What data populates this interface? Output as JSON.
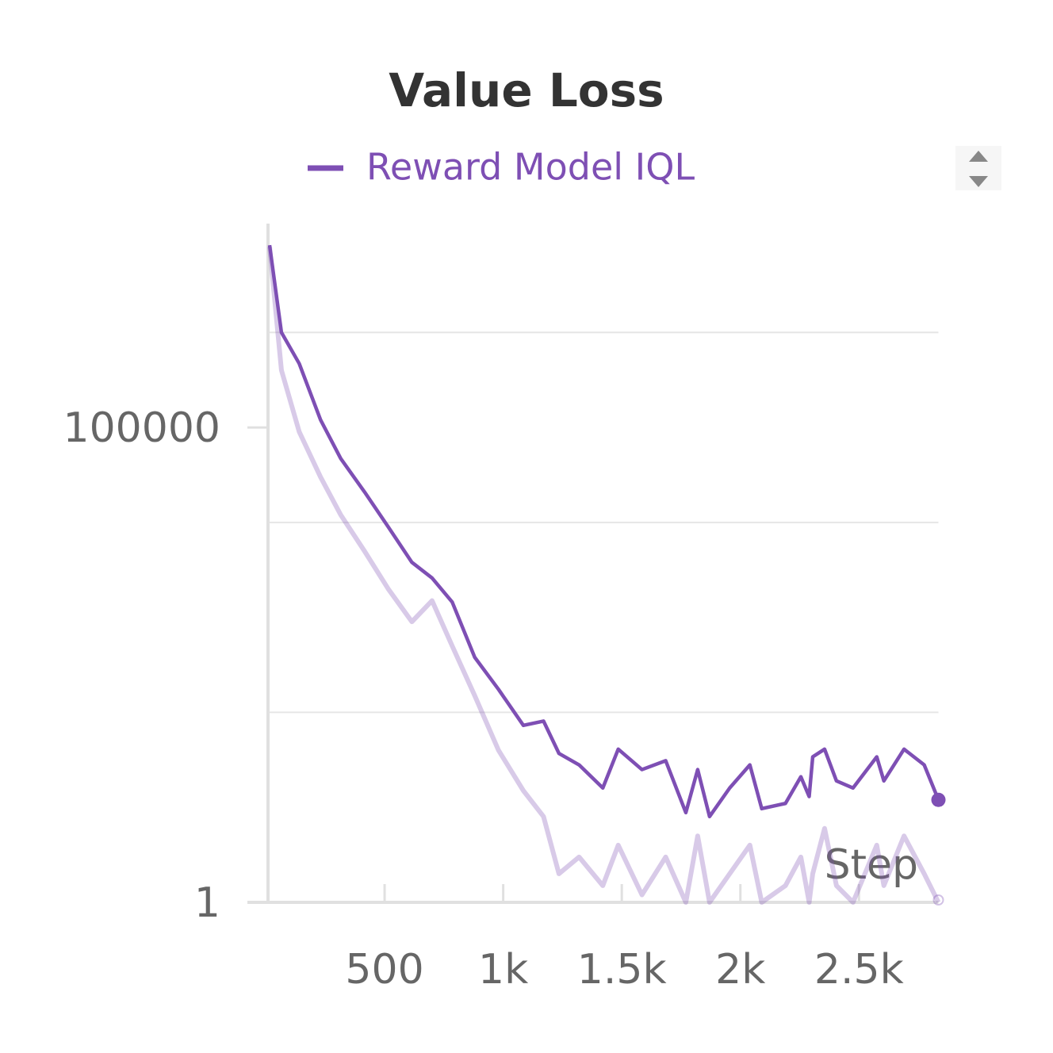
{
  "chart_data": {
    "type": "line",
    "title": "Value Loss",
    "xlabel": "Step",
    "x": [
      15,
      65,
      140,
      230,
      315,
      415,
      515,
      615,
      700,
      785,
      880,
      980,
      1085,
      1170,
      1235,
      1320,
      1420,
      1485,
      1585,
      1685,
      1770,
      1820,
      1870,
      1955,
      2040,
      2090,
      2190,
      2255,
      2290,
      2305,
      2355,
      2405,
      2475,
      2575,
      2605,
      2690,
      2775,
      2835
    ],
    "series": [
      {
        "name": "Reward Model IQL",
        "color": "#7e4fb4",
        "values": [
          8300000,
          1000000,
          470000,
          120000,
          47000,
          21000,
          9000,
          3800,
          2600,
          1450,
          380,
          175,
          73,
          81,
          37,
          28,
          16,
          41,
          25,
          31,
          8.8,
          25,
          8,
          16,
          28,
          9.7,
          11,
          21,
          13,
          34,
          41,
          19,
          16,
          34,
          19,
          41,
          28,
          12
        ],
        "raw_values": [
          8000000,
          400000,
          90000,
          30000,
          12000,
          5000,
          2000,
          900,
          1500,
          500,
          150,
          40,
          15,
          8,
          2,
          3,
          1.5,
          4,
          1.2,
          3,
          1,
          5,
          1,
          2,
          4,
          1,
          1.5,
          3,
          1,
          2,
          6,
          1.5,
          1,
          4,
          1.5,
          5,
          2,
          1
        ]
      }
    ],
    "log_y": true,
    "xlim": [
      0,
      2835
    ],
    "xticks": [
      500,
      {
        "value": 1000,
        "label": "1k"
      },
      {
        "value": 1500,
        "label": "1.5k"
      },
      {
        "value": 2000,
        "label": "2k"
      },
      {
        "value": 2500,
        "label": "2.5k"
      }
    ],
    "ylim": [
      1,
      14000000
    ],
    "yticks": [
      1,
      100000
    ],
    "ygrid": [
      100,
      10000,
      1000000
    ]
  }
}
